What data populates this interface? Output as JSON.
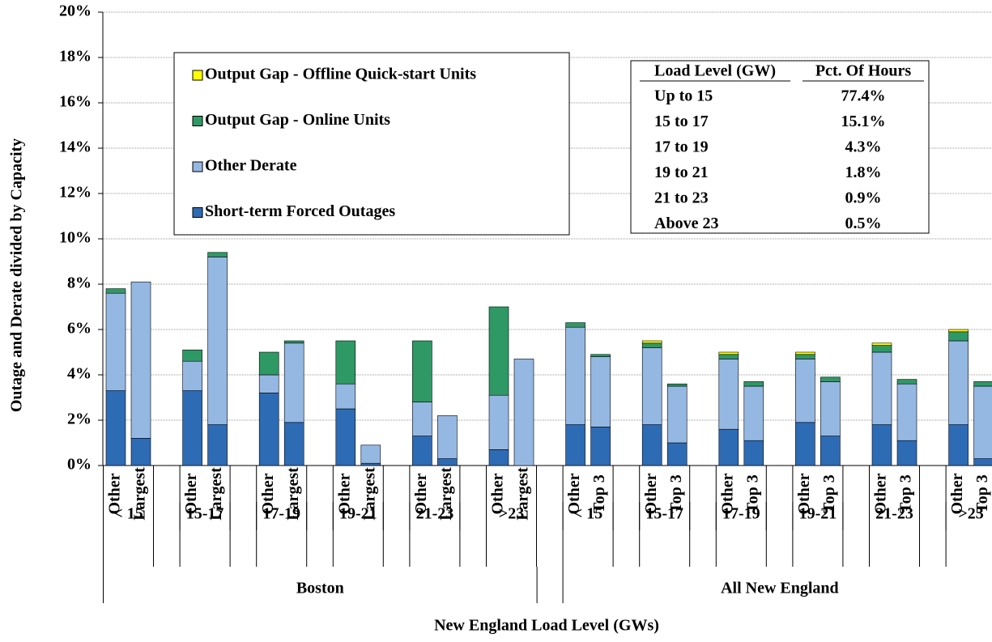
{
  "chart_data": {
    "type": "stacked-bar",
    "y_label": "Outage and Derate divided by Capacity",
    "x_label": "New England Load Level (GWs)",
    "categories": [
      "Other",
      "Largest",
      "Other",
      "Largest",
      "Other",
      "Largest",
      "Other",
      "Largest",
      "Other",
      "Largest",
      "Other",
      "Largest",
      "Other",
      "Top 3",
      "Other",
      "Top 3",
      "Other",
      "Top 3",
      "Other",
      "Top 3",
      "Other",
      "Top 3",
      "Other",
      "Top 3"
    ],
    "load_levels": [
      "< 15",
      "15-17",
      "17-19",
      "19-21",
      "21-23",
      ">23",
      "< 15",
      "15-17",
      "17-19",
      "19-21",
      "21-23",
      ">23"
    ],
    "regions": [
      "Boston",
      "All New England"
    ],
    "series": [
      {
        "name": "Short-term Forced Outages",
        "color": "#2e6bb5",
        "values": [
          3.3,
          1.2,
          3.3,
          1.8,
          3.2,
          1.9,
          2.5,
          0.1,
          1.3,
          0.3,
          0.7,
          0,
          1.8,
          1.7,
          1.8,
          1.0,
          1.6,
          1.1,
          1.9,
          1.3,
          1.8,
          1.1,
          1.8,
          0.3
        ]
      },
      {
        "name": "Other Derate",
        "color": "#95b8e3",
        "values": [
          4.3,
          6.9,
          1.3,
          7.4,
          0.8,
          3.5,
          1.1,
          0.8,
          1.5,
          1.9,
          2.4,
          4.7,
          4.3,
          3.1,
          3.4,
          2.5,
          3.1,
          2.4,
          2.8,
          2.4,
          3.2,
          2.5,
          3.7,
          3.2
        ]
      },
      {
        "name": "Output Gap - Online Units",
        "color": "#2f9966",
        "values": [
          0.2,
          0,
          0.5,
          0.2,
          1.0,
          0.1,
          1.9,
          0,
          2.7,
          0,
          3.9,
          0,
          0.2,
          0.1,
          0.2,
          0.1,
          0.2,
          0.2,
          0.2,
          0.2,
          0.3,
          0.2,
          0.4,
          0.2
        ]
      },
      {
        "name": "Output Gap - Offline Quick-start Units",
        "color": "#ffff00",
        "values": [
          0,
          0,
          0,
          0,
          0,
          0,
          0,
          0,
          0,
          0,
          0,
          0,
          0,
          0,
          0.1,
          0,
          0.1,
          0,
          0.1,
          0,
          0.1,
          0,
          0.1,
          0
        ]
      }
    ],
    "ylim": [
      0,
      20
    ],
    "yticks": [
      {
        "value": 0,
        "label": "0%"
      },
      {
        "value": 2,
        "label": "2%"
      },
      {
        "value": 4,
        "label": "4%"
      },
      {
        "value": 6,
        "label": "6%"
      },
      {
        "value": 8,
        "label": "8%"
      },
      {
        "value": 10,
        "label": "10%"
      },
      {
        "value": 12,
        "label": "12%"
      },
      {
        "value": 14,
        "label": "14%"
      },
      {
        "value": 16,
        "label": "16%"
      },
      {
        "value": 18,
        "label": "18%"
      },
      {
        "value": 20,
        "label": "20%"
      }
    ],
    "grid": true,
    "legend": "upper left",
    "table": {
      "header": [
        "Load Level (GW)",
        "Pct. Of Hours"
      ],
      "rows": [
        [
          "Up to 15",
          "77.4%"
        ],
        [
          "15 to 17",
          "15.1%"
        ],
        [
          "17 to 19",
          "4.3%"
        ],
        [
          "19 to 21",
          "1.8%"
        ],
        [
          "21 to 23",
          "0.9%"
        ],
        [
          "Above 23",
          "0.5%"
        ]
      ]
    }
  }
}
